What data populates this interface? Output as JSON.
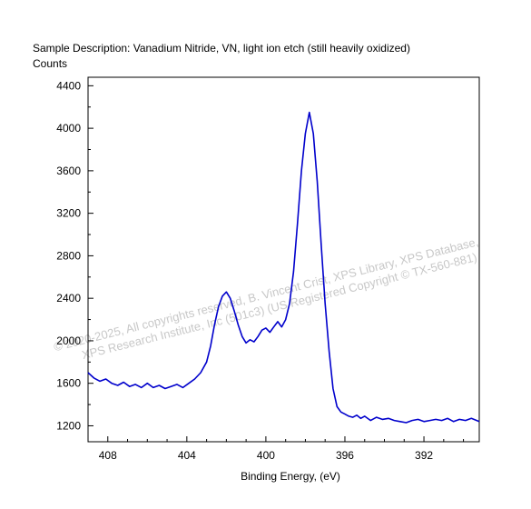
{
  "header": {
    "sample_description": "Sample Description:  Vanadium Nitride, VN, light ion etch (still heavily oxidized)",
    "counts_label": "Counts"
  },
  "watermark": {
    "line1": "© 2020-2025,  All copyrights reserved,   B. Vincent Crist,  XPS Library, XPS Database,",
    "line2": "XPS Research Institute, Inc (501c3)   (US Registered Copyright © TX-560-881)"
  },
  "chart_data": {
    "type": "line",
    "title": "Sample Description:  Vanadium Nitride, VN, light ion etch (still heavily oxidized)",
    "xlabel": "Binding Energy, (eV)",
    "ylabel": "Counts",
    "xlim": [
      409,
      389.2
    ],
    "ylim": [
      1050,
      4480
    ],
    "x_reversed": true,
    "grid": false,
    "x_ticks": [
      408,
      404,
      400,
      396,
      392
    ],
    "y_ticks": [
      1200,
      1600,
      2000,
      2400,
      2800,
      3200,
      3600,
      4000,
      4400
    ],
    "series_color": "#0000cc",
    "series": [
      {
        "x": [
          409.0,
          408.7,
          408.4,
          408.1,
          407.8,
          407.5,
          407.2,
          406.9,
          406.6,
          406.3,
          406.0,
          405.7,
          405.4,
          405.1,
          404.8,
          404.5,
          404.2,
          403.9,
          403.6,
          403.3,
          403.0,
          402.8,
          402.6,
          402.4,
          402.2,
          402.0,
          401.8,
          401.6,
          401.4,
          401.2,
          401.0,
          400.8,
          400.6,
          400.4,
          400.2,
          400.0,
          399.8,
          399.6,
          399.4,
          399.2,
          399.0,
          398.8,
          398.6,
          398.4,
          398.2,
          398.0,
          397.8,
          397.6,
          397.4,
          397.2,
          397.0,
          396.8,
          396.6,
          396.4,
          396.2,
          396.0,
          395.8,
          395.6,
          395.4,
          395.2,
          395.0,
          394.7,
          394.4,
          394.1,
          393.8,
          393.5,
          393.2,
          392.9,
          392.6,
          392.3,
          392.0,
          391.7,
          391.4,
          391.1,
          390.8,
          390.5,
          390.2,
          389.9,
          389.6,
          389.2
        ],
        "y": [
          1700,
          1650,
          1620,
          1640,
          1600,
          1580,
          1610,
          1570,
          1590,
          1560,
          1600,
          1560,
          1580,
          1550,
          1570,
          1590,
          1560,
          1600,
          1640,
          1700,
          1800,
          1950,
          2150,
          2320,
          2420,
          2460,
          2400,
          2280,
          2150,
          2040,
          1980,
          2010,
          1990,
          2040,
          2100,
          2120,
          2080,
          2130,
          2180,
          2130,
          2200,
          2350,
          2650,
          3100,
          3600,
          3950,
          4150,
          3950,
          3500,
          2900,
          2350,
          1900,
          1550,
          1380,
          1330,
          1310,
          1290,
          1280,
          1300,
          1270,
          1290,
          1250,
          1280,
          1260,
          1270,
          1250,
          1240,
          1230,
          1250,
          1260,
          1240,
          1250,
          1260,
          1250,
          1270,
          1240,
          1260,
          1250,
          1270,
          1240
        ]
      }
    ]
  }
}
